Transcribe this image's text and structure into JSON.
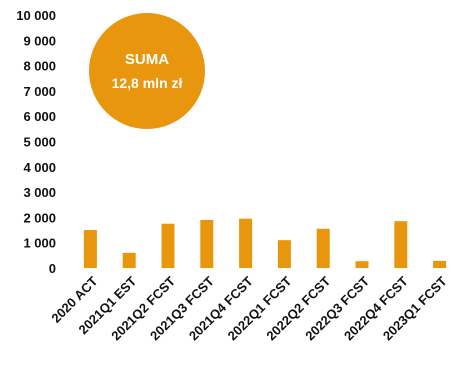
{
  "chart_data": {
    "type": "bar",
    "categories": [
      "2020 ACT",
      "2021Q1 EST",
      "2021Q2 FCST",
      "2021Q3 FCST",
      "2021Q4 FCST",
      "2022Q1 FCST",
      "2022Q2 FCST",
      "2022Q3 FCST",
      "2022Q4 FCST",
      "2023Q1 FCST"
    ],
    "values": [
      1500,
      600,
      1750,
      1900,
      1950,
      1100,
      1550,
      270,
      1850,
      280
    ],
    "yticks": [
      "0",
      "1 000",
      "2 000",
      "3 000",
      "4 000",
      "5 000",
      "6 000",
      "7 000",
      "8 000",
      "9 000",
      "10 000"
    ],
    "ylim": [
      0,
      10000
    ],
    "grid": false,
    "bar_color": "#E8960E",
    "badge": {
      "title": "SUMA",
      "value": "12,8 mln zł",
      "color": "#E8960E"
    }
  }
}
